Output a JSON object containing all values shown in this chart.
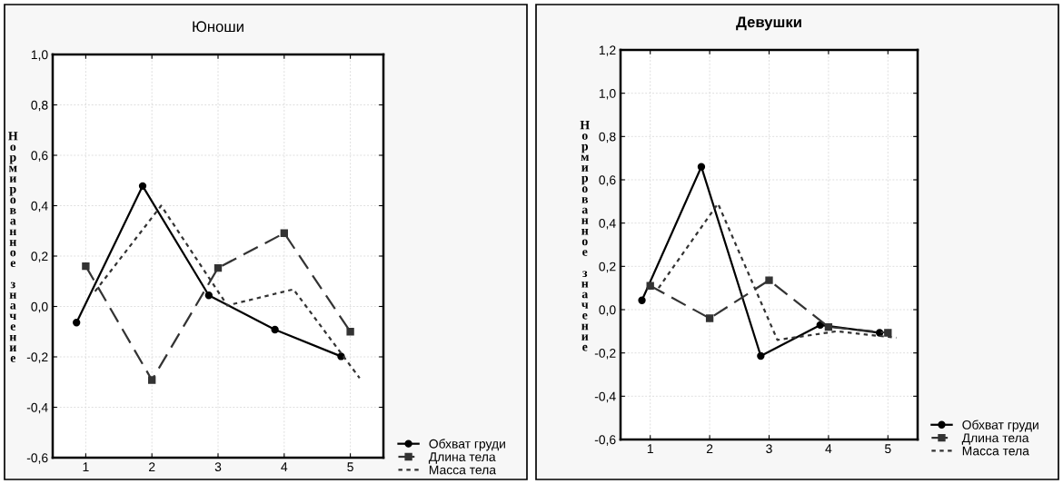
{
  "chart_data": [
    {
      "type": "line",
      "title": "Юноши",
      "ylabel": "Нормированное значение",
      "xlim": [
        0.5,
        5.5
      ],
      "xticks": [
        1,
        2,
        3,
        4,
        5
      ],
      "ylim": [
        -0.6,
        1.0
      ],
      "yticks": [
        {
          "value": -0.6,
          "label": "-0,6"
        },
        {
          "value": -0.4,
          "label": "-0,4"
        },
        {
          "value": -0.2,
          "label": "-0,2"
        },
        {
          "value": 0.0,
          "label": "0,0"
        },
        {
          "value": 0.2,
          "label": "0,2"
        },
        {
          "value": 0.4,
          "label": "0,4"
        },
        {
          "value": 0.6,
          "label": "0,6"
        },
        {
          "value": 0.8,
          "label": "0,8"
        },
        {
          "value": 1.0,
          "label": "1,0"
        }
      ],
      "grid": true,
      "legend": "bottom right",
      "series": [
        {
          "name": "Обхват груди",
          "color": "#000000",
          "marker": "circle",
          "line_style": "solid",
          "x": [
            0.86,
            1.86,
            2.86,
            3.86,
            4.86
          ],
          "values": [
            -0.064,
            0.478,
            0.044,
            -0.092,
            -0.198
          ]
        },
        {
          "name": "Длина тела",
          "color": "#333333",
          "marker": "square",
          "line_style": "dashed",
          "x": [
            1,
            2,
            3,
            4,
            5
          ],
          "values": [
            0.16,
            -0.292,
            0.153,
            0.291,
            -0.1
          ]
        },
        {
          "name": "Масса тела",
          "color": "#333333",
          "marker": "none",
          "line_style": "dotted",
          "x": [
            1.14,
            2.14,
            3.14,
            4.14,
            5.14
          ],
          "values": [
            0.06,
            0.4,
            0.004,
            0.068,
            -0.284
          ]
        }
      ]
    },
    {
      "type": "line",
      "title": "Девушки",
      "ylabel": "Нормированное значение",
      "xlim": [
        0.5,
        5.5
      ],
      "xticks": [
        1,
        2,
        3,
        4,
        5
      ],
      "ylim": [
        -0.6,
        1.2
      ],
      "yticks": [
        {
          "value": -0.6,
          "label": "-0,6"
        },
        {
          "value": -0.4,
          "label": "-0,4"
        },
        {
          "value": -0.2,
          "label": "-0,2"
        },
        {
          "value": 0.0,
          "label": "0,0"
        },
        {
          "value": 0.2,
          "label": "0,2"
        },
        {
          "value": 0.4,
          "label": "0,4"
        },
        {
          "value": 0.6,
          "label": "0,6"
        },
        {
          "value": 0.8,
          "label": "0,8"
        },
        {
          "value": 1.0,
          "label": "1,0"
        },
        {
          "value": 1.2,
          "label": "1,2"
        }
      ],
      "grid": true,
      "legend": "bottom right",
      "series": [
        {
          "name": "Обхват груди",
          "color": "#000000",
          "marker": "circle",
          "line_style": "solid",
          "x": [
            0.86,
            1.86,
            2.86,
            3.86,
            4.86
          ],
          "values": [
            0.043,
            0.66,
            -0.214,
            -0.071,
            -0.107
          ]
        },
        {
          "name": "Длина тела",
          "color": "#333333",
          "marker": "square",
          "line_style": "dashed",
          "x": [
            1,
            2,
            3,
            4,
            5
          ],
          "values": [
            0.11,
            -0.04,
            0.136,
            -0.08,
            -0.107
          ]
        },
        {
          "name": "Масса тела",
          "color": "#333333",
          "marker": "none",
          "line_style": "dotted",
          "x": [
            1.14,
            2.14,
            3.14,
            4.14,
            5.14
          ],
          "values": [
            0.1,
            0.49,
            -0.14,
            -0.1,
            -0.13
          ]
        }
      ]
    }
  ]
}
